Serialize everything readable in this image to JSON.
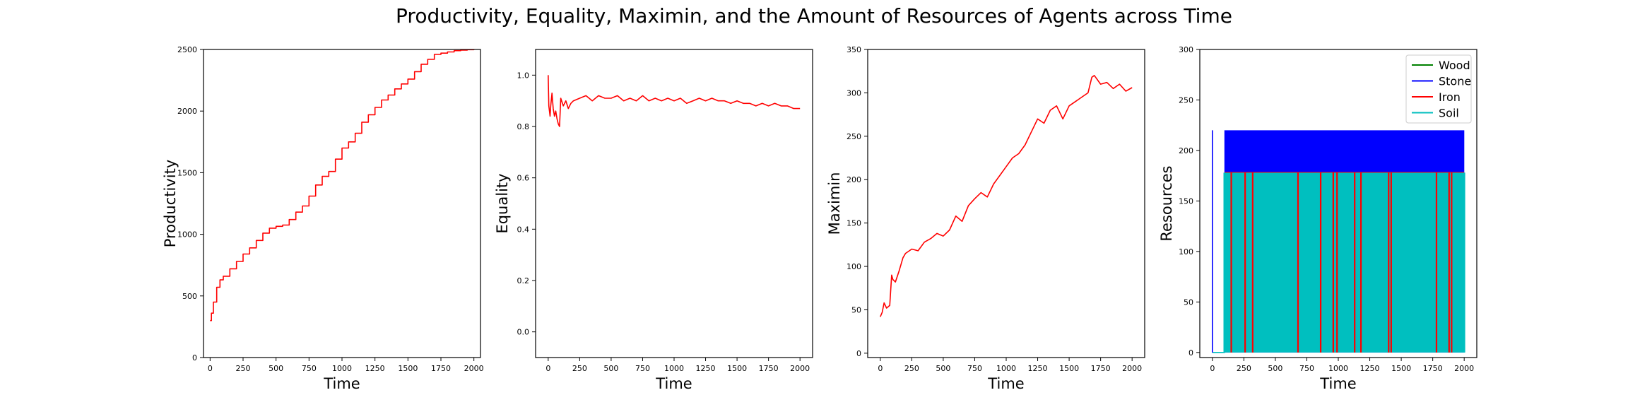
{
  "figure": {
    "title": "Productivity, Equality, Maximin, and the Amount of Resources of Agents across Time"
  },
  "chart_data": [
    {
      "type": "line",
      "xlabel": "Time",
      "ylabel": "Productivity",
      "xlim": [
        -50,
        2050
      ],
      "ylim": [
        0,
        2500
      ],
      "xticks": [
        0,
        250,
        500,
        750,
        1000,
        1250,
        1500,
        1750,
        2000
      ],
      "yticks": [
        0,
        500,
        1000,
        1500,
        2000,
        2500
      ],
      "grid": false,
      "series": [
        {
          "color": "#ff0000",
          "style": "step",
          "x": [
            0,
            10,
            25,
            50,
            75,
            100,
            150,
            200,
            250,
            300,
            350,
            400,
            450,
            500,
            550,
            600,
            650,
            700,
            750,
            800,
            850,
            900,
            950,
            1000,
            1050,
            1100,
            1150,
            1200,
            1250,
            1300,
            1350,
            1400,
            1450,
            1500,
            1550,
            1600,
            1650,
            1700,
            1750,
            1800,
            1850,
            1900,
            1950,
            2000
          ],
          "y": [
            300,
            360,
            450,
            570,
            630,
            660,
            720,
            780,
            840,
            890,
            950,
            1010,
            1050,
            1065,
            1075,
            1120,
            1180,
            1230,
            1310,
            1400,
            1470,
            1510,
            1610,
            1700,
            1750,
            1820,
            1910,
            1970,
            2030,
            2090,
            2130,
            2180,
            2220,
            2260,
            2320,
            2380,
            2420,
            2460,
            2470,
            2480,
            2490,
            2495,
            2498,
            2500
          ]
        }
      ]
    },
    {
      "type": "line",
      "xlabel": "Time",
      "ylabel": "Equality",
      "xlim": [
        -100,
        2100
      ],
      "ylim": [
        -0.1,
        1.1
      ],
      "xticks": [
        0,
        250,
        500,
        750,
        1000,
        1250,
        1500,
        1750,
        2000
      ],
      "yticks": [
        "0.0",
        "0.2",
        "0.4",
        "0.6",
        "0.8",
        "1.0"
      ],
      "grid": false,
      "series": [
        {
          "color": "#ff0000",
          "style": "line",
          "x": [
            0,
            5,
            10,
            15,
            20,
            30,
            40,
            50,
            60,
            70,
            80,
            90,
            100,
            120,
            140,
            160,
            180,
            200,
            250,
            300,
            350,
            400,
            450,
            500,
            550,
            600,
            650,
            700,
            750,
            800,
            850,
            900,
            950,
            1000,
            1050,
            1100,
            1150,
            1200,
            1250,
            1300,
            1350,
            1400,
            1450,
            1500,
            1550,
            1600,
            1650,
            1700,
            1750,
            1800,
            1850,
            1900,
            1950,
            2000
          ],
          "y": [
            1.0,
            0.88,
            0.86,
            0.84,
            0.88,
            0.93,
            0.87,
            0.84,
            0.86,
            0.83,
            0.81,
            0.8,
            0.91,
            0.88,
            0.9,
            0.87,
            0.89,
            0.9,
            0.91,
            0.92,
            0.9,
            0.92,
            0.91,
            0.91,
            0.92,
            0.9,
            0.91,
            0.9,
            0.92,
            0.9,
            0.91,
            0.9,
            0.91,
            0.9,
            0.91,
            0.89,
            0.9,
            0.91,
            0.9,
            0.91,
            0.9,
            0.9,
            0.89,
            0.9,
            0.89,
            0.89,
            0.88,
            0.89,
            0.88,
            0.89,
            0.88,
            0.88,
            0.87,
            0.87
          ]
        }
      ]
    },
    {
      "type": "line",
      "xlabel": "Time",
      "ylabel": "Maximin",
      "xlim": [
        -100,
        2100
      ],
      "ylim": [
        -5,
        350
      ],
      "xticks": [
        0,
        250,
        500,
        750,
        1000,
        1250,
        1500,
        1750,
        2000
      ],
      "yticks": [
        0,
        50,
        100,
        150,
        200,
        250,
        300,
        350
      ],
      "grid": false,
      "series": [
        {
          "color": "#ff0000",
          "style": "line",
          "x": [
            0,
            15,
            30,
            50,
            75,
            90,
            100,
            120,
            150,
            180,
            200,
            250,
            300,
            350,
            400,
            450,
            500,
            550,
            600,
            650,
            700,
            750,
            800,
            850,
            900,
            950,
            1000,
            1050,
            1100,
            1150,
            1200,
            1250,
            1300,
            1350,
            1400,
            1450,
            1500,
            1550,
            1600,
            1650,
            1680,
            1700,
            1750,
            1800,
            1850,
            1900,
            1950,
            2000
          ],
          "y": [
            42,
            47,
            58,
            52,
            55,
            90,
            85,
            82,
            95,
            110,
            115,
            120,
            118,
            128,
            132,
            138,
            135,
            142,
            158,
            152,
            170,
            178,
            185,
            180,
            195,
            205,
            215,
            225,
            230,
            240,
            255,
            270,
            265,
            280,
            285,
            270,
            285,
            290,
            295,
            300,
            318,
            320,
            310,
            312,
            305,
            310,
            302,
            306
          ]
        }
      ]
    },
    {
      "type": "line",
      "xlabel": "Time",
      "ylabel": "Resources",
      "xlim": [
        -100,
        2100
      ],
      "ylim": [
        -5,
        300
      ],
      "xticks": [
        0,
        250,
        500,
        750,
        1000,
        1250,
        1500,
        1750,
        2000
      ],
      "yticks": [
        0,
        50,
        100,
        150,
        200,
        250,
        300
      ],
      "grid": false,
      "legend": "top-right",
      "series": [
        {
          "name": "Wood",
          "color": "#008000"
        },
        {
          "name": "Stone",
          "color": "#0000ff",
          "high": 220,
          "spike_at": [
            0
          ]
        },
        {
          "name": "Iron",
          "color": "#ff0000",
          "high": 178,
          "spikes_at": [
            150,
            260,
            320,
            680,
            860,
            960,
            990,
            1130,
            1180,
            1400,
            1420,
            1780,
            1880,
            1900
          ]
        },
        {
          "name": "Soil",
          "color": "#00bfbf",
          "high": 178
        }
      ],
      "signal": {
        "start": 100,
        "end": 2000,
        "low": 0,
        "initial": [
          0,
          0
        ]
      }
    }
  ]
}
